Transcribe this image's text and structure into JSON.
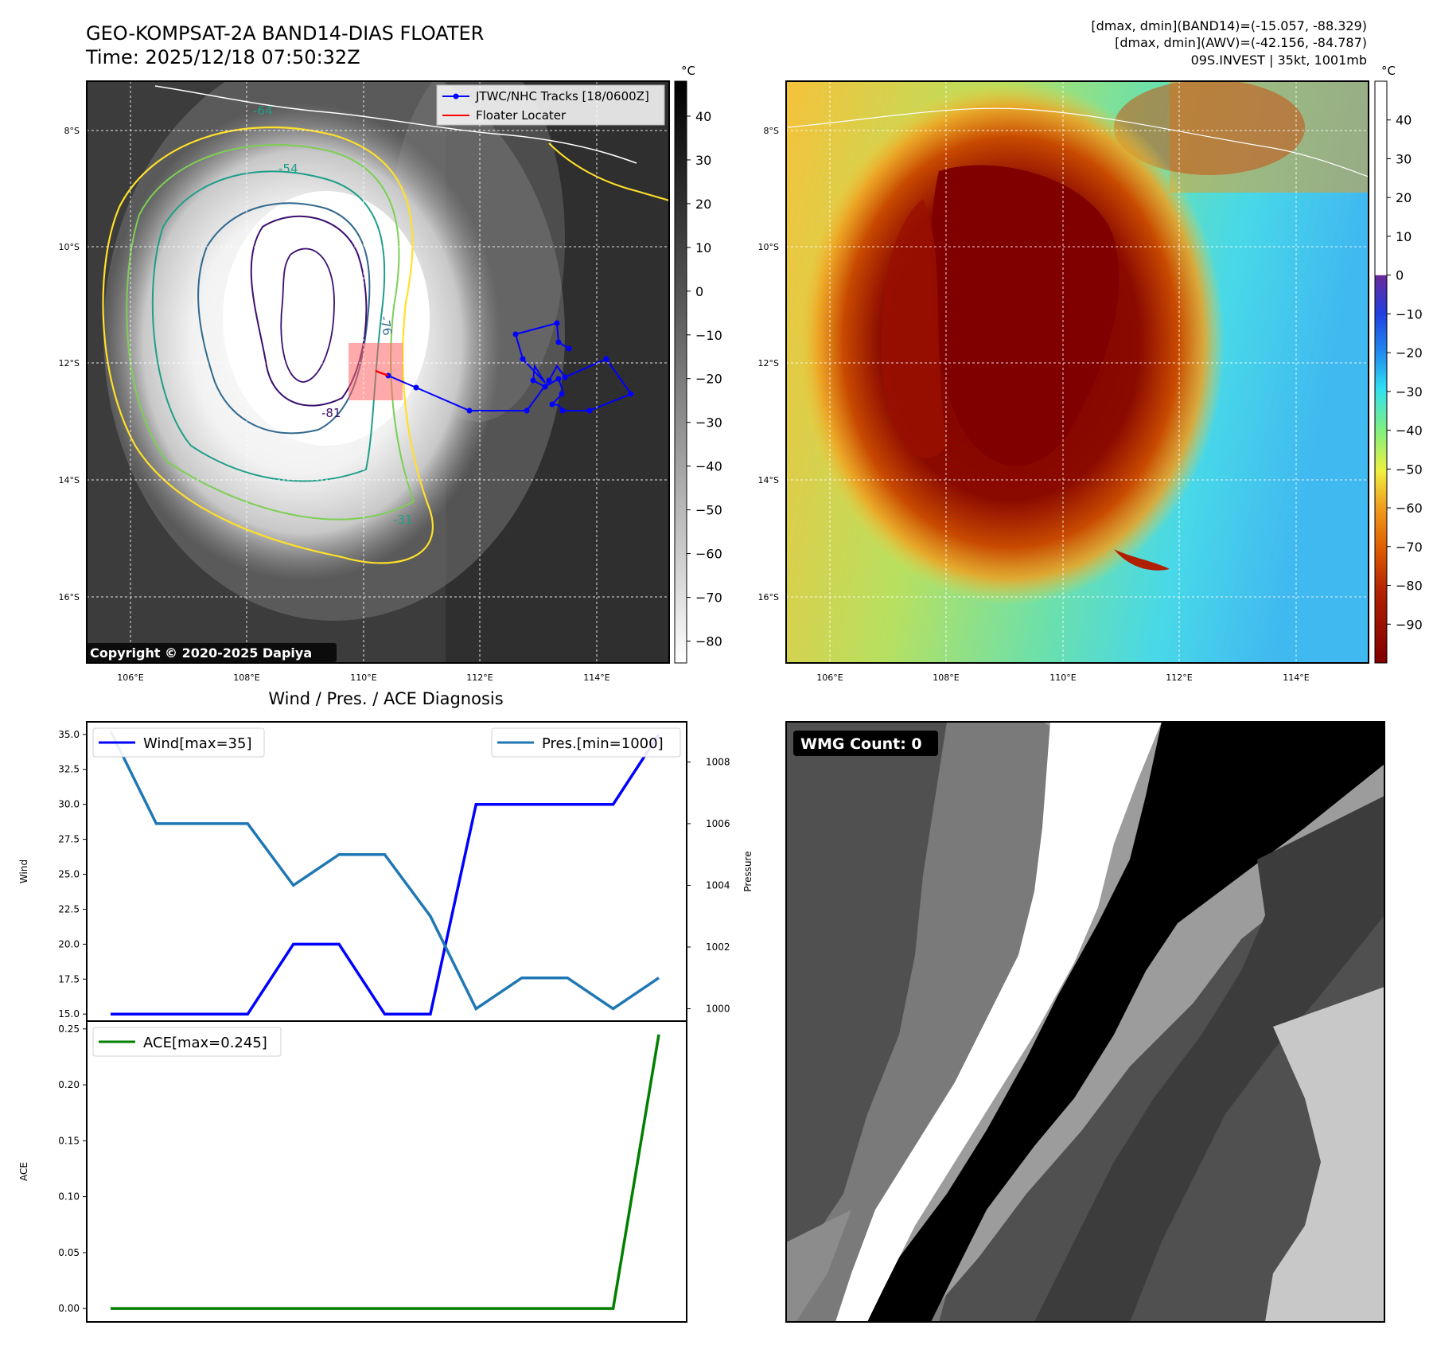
{
  "header": {
    "title": "GEO-KOMPSAT-2A BAND14-DIAS FLOATER",
    "time": "Time: 2025/12/18 07:50:32Z",
    "dmax_band14": "[dmax, dmin](BAND14)=(-15.057, -88.329)",
    "dmax_awv": "[dmax, dmin](AWV)=(-42.156, -84.787)",
    "storm_info": "09S.INVEST | 35kt, 1001mb"
  },
  "copyright": "Copyright © 2020-2025 Dapiya",
  "units_label": "°C",
  "map": {
    "lat_labels": [
      "8°S",
      "10°S",
      "12°S",
      "14°S",
      "16°S"
    ],
    "lon_labels": [
      "106°E",
      "108°E",
      "110°E",
      "112°E",
      "114°E"
    ],
    "contour_labels": [
      "-54",
      "-76",
      "-81",
      "-31",
      "-64"
    ],
    "legend": {
      "track": "JTWC/NHC Tracks [18/0600Z]",
      "locater": "Floater Locater"
    },
    "colors": {
      "track": "#0000ff",
      "locater": "#ff0000",
      "box": "#ff6464",
      "contour_yellow": "#ffe02a",
      "contour_green": "#7ccf55",
      "contour_teal": "#1f9e89",
      "contour_blue": "#31688e",
      "contour_purple": "#3b0f70"
    }
  },
  "colorbar_band14": {
    "ticks": [
      "40",
      "30",
      "20",
      "10",
      "0",
      "−10",
      "−20",
      "−30",
      "−40",
      "−50",
      "−60",
      "−70",
      "−80"
    ],
    "range": [
      48,
      -85
    ]
  },
  "colorbar_awv": {
    "ticks": [
      "40",
      "30",
      "20",
      "10",
      "0",
      "−10",
      "−20",
      "−30",
      "−40",
      "−50",
      "−60",
      "−70",
      "−80",
      "−90"
    ],
    "range": [
      50,
      -100
    ]
  },
  "diagnosis_title": "Wind / Pres. / ACE Diagnosis",
  "wmg": {
    "label": "WMG Count: 0"
  },
  "chart_data": [
    {
      "type": "line",
      "title": "Wind / Pres. / ACE Diagnosis",
      "xlabel": "",
      "ylabel": "Wind",
      "y2label": "Pressure",
      "x": [
        0,
        1,
        2,
        3,
        4,
        5,
        6,
        7,
        8,
        9,
        10,
        11,
        12
      ],
      "ylim": [
        14.5,
        35.9
      ],
      "y2lim": [
        999.6,
        1009.3
      ],
      "yticks": [
        "15.0",
        "17.5",
        "20.0",
        "22.5",
        "25.0",
        "27.5",
        "30.0",
        "32.5",
        "35.0"
      ],
      "y2ticks": [
        "1000",
        "1002",
        "1004",
        "1006",
        "1008"
      ],
      "series": [
        {
          "name": "Wind[max=35]",
          "axis": "left",
          "color": "#0000ff",
          "values": [
            15,
            15,
            15,
            15,
            20,
            20,
            15,
            15,
            30,
            30,
            30,
            30,
            35
          ]
        },
        {
          "name": "Pres.[min=1000]",
          "axis": "right",
          "color": "#1f77b4",
          "values": [
            1009,
            1006,
            1006,
            1006,
            1004,
            1005,
            1005,
            1003,
            1000,
            1001,
            1001,
            1000,
            1001
          ]
        }
      ],
      "legend_wind": "Wind[max=35]",
      "legend_pres": "Pres.[min=1000]"
    },
    {
      "type": "line",
      "ylabel": "ACE",
      "x": [
        0,
        1,
        2,
        3,
        4,
        5,
        6,
        7,
        8,
        9,
        10,
        11,
        12
      ],
      "ylim": [
        -0.012,
        0.257
      ],
      "yticks": [
        "0.00",
        "0.05",
        "0.10",
        "0.15",
        "0.20",
        "0.25"
      ],
      "series": [
        {
          "name": "ACE[max=0.245]",
          "color": "#008000",
          "values": [
            0,
            0,
            0,
            0,
            0,
            0,
            0,
            0,
            0,
            0,
            0,
            0,
            0.245
          ]
        }
      ],
      "legend_ace": "ACE[max=0.245]"
    }
  ]
}
